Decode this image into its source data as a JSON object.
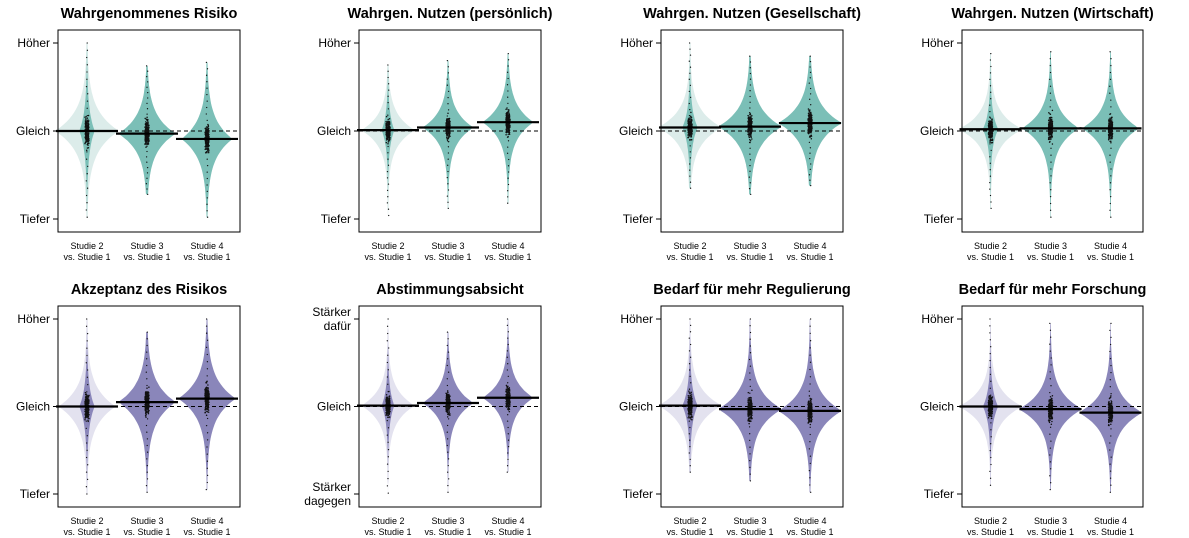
{
  "colors": {
    "top_dark": "#7bbfb7",
    "top_light": "#dcecea",
    "bottom_dark": "#8a86ba",
    "bottom_light": "#e3e2ef",
    "points": "#111111",
    "mean_line": "#000000"
  },
  "chart_data": [
    {
      "type": "violin",
      "title": "Wahrgenommenes Risiko",
      "ylim": [
        -1,
        1
      ],
      "ytick_labels": [
        {
          "v": 1,
          "text": "Höher"
        },
        {
          "v": 0,
          "text": "Gleich"
        },
        {
          "v": -1,
          "text": "Tiefer"
        }
      ],
      "categories": [
        "Studie 2\nvs. Studie 1",
        "Studie 3\nvs. Studie 1",
        "Studie 4\nvs. Studie 1"
      ],
      "palette": "top",
      "groups": [
        {
          "mean": 0.0,
          "min": -0.98,
          "max": 1.0,
          "light_width": 0.5,
          "dark_width": 0.12,
          "spread": 0.38
        },
        {
          "mean": -0.03,
          "min": -0.72,
          "max": 0.74,
          "light_width": 0.45,
          "dark_width": 0.45,
          "spread": 0.34
        },
        {
          "mean": -0.09,
          "min": -0.98,
          "max": 0.78,
          "light_width": 0.4,
          "dark_width": 0.4,
          "spread": 0.36
        }
      ]
    },
    {
      "type": "violin",
      "title": "Wahrgen. Nutzen (persönlich)",
      "ylim": [
        -1,
        1
      ],
      "ytick_labels": [
        {
          "v": 1,
          "text": "Höher"
        },
        {
          "v": 0,
          "text": "Gleich"
        },
        {
          "v": -1,
          "text": "Tiefer"
        }
      ],
      "categories": [
        "Studie 2\nvs. Studie 1",
        "Studie 3\nvs. Studie 1",
        "Studie 4\nvs. Studie 1"
      ],
      "palette": "top",
      "groups": [
        {
          "mean": 0.01,
          "min": -0.96,
          "max": 0.75,
          "light_width": 0.42,
          "dark_width": 0.1,
          "spread": 0.3
        },
        {
          "mean": 0.04,
          "min": -0.88,
          "max": 0.8,
          "light_width": 0.4,
          "dark_width": 0.4,
          "spread": 0.3
        },
        {
          "mean": 0.1,
          "min": -0.82,
          "max": 0.88,
          "light_width": 0.4,
          "dark_width": 0.4,
          "spread": 0.32
        }
      ]
    },
    {
      "type": "violin",
      "title": "Wahrgen. Nutzen (Gesellschaft)",
      "ylim": [
        -1,
        1
      ],
      "ytick_labels": [
        {
          "v": 1,
          "text": "Höher"
        },
        {
          "v": 0,
          "text": "Gleich"
        },
        {
          "v": -1,
          "text": "Tiefer"
        }
      ],
      "categories": [
        "Studie 2\nvs. Studie 1",
        "Studie 3\nvs. Studie 1",
        "Studie 4\nvs. Studie 1"
      ],
      "palette": "top",
      "groups": [
        {
          "mean": 0.04,
          "min": -0.65,
          "max": 1.0,
          "light_width": 0.5,
          "dark_width": 0.12,
          "spread": 0.32
        },
        {
          "mean": 0.05,
          "min": -0.72,
          "max": 0.85,
          "light_width": 0.5,
          "dark_width": 0.5,
          "spread": 0.34
        },
        {
          "mean": 0.09,
          "min": -0.62,
          "max": 0.85,
          "light_width": 0.5,
          "dark_width": 0.5,
          "spread": 0.34
        }
      ]
    },
    {
      "type": "violin",
      "title": "Wahrgen. Nutzen (Wirtschaft)",
      "ylim": [
        -1,
        1
      ],
      "ytick_labels": [
        {
          "v": 1,
          "text": "Höher"
        },
        {
          "v": 0,
          "text": "Gleich"
        },
        {
          "v": -1,
          "text": "Tiefer"
        }
      ],
      "categories": [
        "Studie 2\nvs. Studie 1",
        "Studie 3\nvs. Studie 1",
        "Studie 4\nvs. Studie 1"
      ],
      "palette": "top",
      "groups": [
        {
          "mean": 0.02,
          "min": -0.88,
          "max": 0.88,
          "light_width": 0.5,
          "dark_width": 0.12,
          "spread": 0.3
        },
        {
          "mean": 0.03,
          "min": -0.98,
          "max": 0.9,
          "light_width": 0.45,
          "dark_width": 0.45,
          "spread": 0.32
        },
        {
          "mean": 0.03,
          "min": -0.98,
          "max": 0.9,
          "light_width": 0.45,
          "dark_width": 0.45,
          "spread": 0.32
        }
      ]
    },
    {
      "type": "violin",
      "title": "Akzeptanz des Risikos",
      "ylim": [
        -1,
        1
      ],
      "ytick_labels": [
        {
          "v": 1,
          "text": "Höher"
        },
        {
          "v": 0,
          "text": "Gleich"
        },
        {
          "v": -1,
          "text": "Tiefer"
        }
      ],
      "categories": [
        "Studie 2\nvs. Studie 1",
        "Studie 3\nvs. Studie 1",
        "Studie 4\nvs. Studie 1"
      ],
      "palette": "bottom",
      "groups": [
        {
          "mean": 0.0,
          "min": -1.0,
          "max": 1.0,
          "light_width": 0.45,
          "dark_width": 0.12,
          "spread": 0.35
        },
        {
          "mean": 0.05,
          "min": -0.98,
          "max": 0.85,
          "light_width": 0.45,
          "dark_width": 0.45,
          "spread": 0.36
        },
        {
          "mean": 0.09,
          "min": -0.95,
          "max": 1.0,
          "light_width": 0.45,
          "dark_width": 0.45,
          "spread": 0.36
        }
      ]
    },
    {
      "type": "violin",
      "title": "Abstimmungsabsicht",
      "ylim": [
        -1,
        1
      ],
      "ytick_labels": [
        {
          "v": 1,
          "text": "Stärker dafür"
        },
        {
          "v": 0,
          "text": "Gleich"
        },
        {
          "v": -1,
          "text": "Stärker dagegen"
        }
      ],
      "categories": [
        "Studie 2\nvs. Studie 1",
        "Studie 3\nvs. Studie 1",
        "Studie 4\nvs. Studie 1"
      ],
      "palette": "bottom",
      "groups": [
        {
          "mean": 0.01,
          "min": -0.99,
          "max": 1.0,
          "light_width": 0.42,
          "dark_width": 0.1,
          "spread": 0.3
        },
        {
          "mean": 0.04,
          "min": -0.98,
          "max": 0.85,
          "light_width": 0.4,
          "dark_width": 0.4,
          "spread": 0.3
        },
        {
          "mean": 0.1,
          "min": -0.75,
          "max": 1.0,
          "light_width": 0.4,
          "dark_width": 0.4,
          "spread": 0.3
        }
      ]
    },
    {
      "type": "violin",
      "title": "Bedarf für mehr Regulierung",
      "ylim": [
        -1,
        1
      ],
      "ytick_labels": [
        {
          "v": 1,
          "text": "Höher"
        },
        {
          "v": 0,
          "text": "Gleich"
        },
        {
          "v": -1,
          "text": "Tiefer"
        }
      ],
      "categories": [
        "Studie 2\nvs. Studie 1",
        "Studie 3\nvs. Studie 1",
        "Studie 4\nvs. Studie 1"
      ],
      "palette": "bottom",
      "groups": [
        {
          "mean": 0.01,
          "min": -0.75,
          "max": 1.0,
          "light_width": 0.5,
          "dark_width": 0.12,
          "spread": 0.32
        },
        {
          "mean": -0.03,
          "min": -0.85,
          "max": 1.0,
          "light_width": 0.5,
          "dark_width": 0.5,
          "spread": 0.34
        },
        {
          "mean": -0.05,
          "min": -0.98,
          "max": 1.0,
          "light_width": 0.5,
          "dark_width": 0.5,
          "spread": 0.34
        }
      ]
    },
    {
      "type": "violin",
      "title": "Bedarf für mehr Forschung",
      "ylim": [
        -1,
        1
      ],
      "ytick_labels": [
        {
          "v": 1,
          "text": "Höher"
        },
        {
          "v": 0,
          "text": "Gleich"
        },
        {
          "v": -1,
          "text": "Tiefer"
        }
      ],
      "categories": [
        "Studie 2\nvs. Studie 1",
        "Studie 3\nvs. Studie 1",
        "Studie 4\nvs. Studie 1"
      ],
      "palette": "bottom",
      "groups": [
        {
          "mean": 0.0,
          "min": -0.9,
          "max": 1.0,
          "light_width": 0.5,
          "dark_width": 0.12,
          "spread": 0.3
        },
        {
          "mean": -0.03,
          "min": -0.95,
          "max": 0.95,
          "light_width": 0.5,
          "dark_width": 0.5,
          "spread": 0.32
        },
        {
          "mean": -0.07,
          "min": -0.98,
          "max": 0.95,
          "light_width": 0.5,
          "dark_width": 0.5,
          "spread": 0.32
        }
      ]
    }
  ]
}
